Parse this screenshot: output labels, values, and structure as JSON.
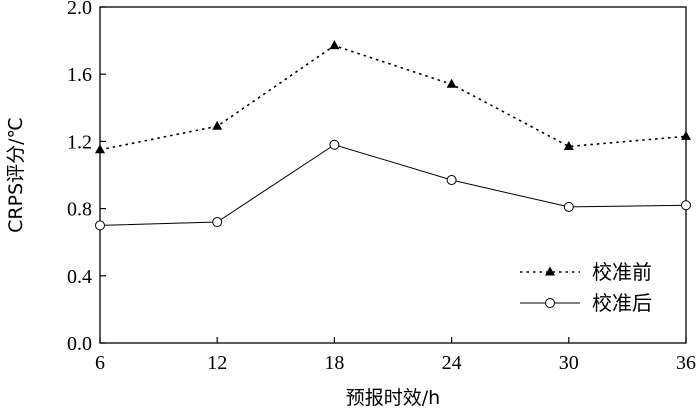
{
  "chart_data": {
    "type": "line",
    "x": [
      6,
      12,
      18,
      24,
      30,
      36
    ],
    "x_ticks": [
      "6",
      "12",
      "18",
      "24",
      "30",
      "36"
    ],
    "y_ticks": [
      "0.0",
      "0.4",
      "0.8",
      "1.2",
      "1.6",
      "2.0"
    ],
    "xlim": [
      6,
      36
    ],
    "ylim": [
      0,
      2.0
    ],
    "xlabel": "预报时效/h",
    "ylabel": "CRPS评分/℃",
    "grid": false,
    "legend_position": "bottom-right",
    "series": [
      {
        "name": "校准前",
        "values": [
          1.15,
          1.29,
          1.77,
          1.54,
          1.17,
          1.23
        ],
        "line_style": "dotted",
        "marker": "filled-triangle",
        "color": "#000000"
      },
      {
        "name": "校准后",
        "values": [
          0.7,
          0.72,
          1.18,
          0.97,
          0.81,
          0.82
        ],
        "line_style": "solid",
        "marker": "open-circle",
        "color": "#000000"
      }
    ]
  }
}
